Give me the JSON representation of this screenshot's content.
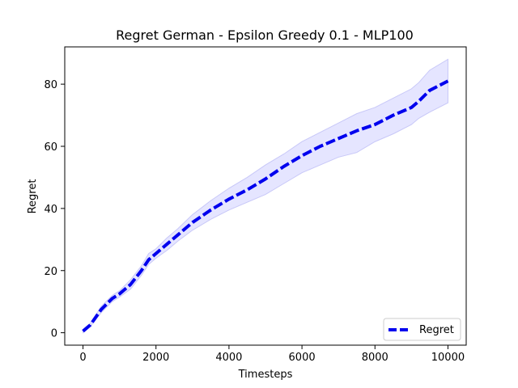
{
  "chart_data": {
    "type": "line",
    "title": "Regret German - Epsilon Greedy 0.1 - MLP100",
    "xlabel": "Timesteps",
    "ylabel": "Regret",
    "xlim": [
      -500,
      10500
    ],
    "ylim": [
      -4,
      92
    ],
    "xticks": [
      0,
      2000,
      4000,
      6000,
      8000,
      10000
    ],
    "xtick_labels": [
      "0",
      "2000",
      "4000",
      "6000",
      "8000",
      "10000"
    ],
    "yticks": [
      0,
      20,
      40,
      60,
      80
    ],
    "ytick_labels": [
      "0",
      "20",
      "40",
      "60",
      "80"
    ],
    "grid": false,
    "legend": {
      "placement": "lower-right",
      "entries": [
        "Regret"
      ]
    },
    "colors": {
      "line": "#0000ee",
      "band": "#e0e0ff",
      "band_edge": "#c8c8f8"
    },
    "series": [
      {
        "name": "Regret",
        "style": "dashed",
        "x": [
          0,
          200,
          500,
          800,
          1000,
          1300,
          1600,
          1800,
          2000,
          2300,
          2600,
          3000,
          3500,
          4000,
          4500,
          5000,
          5500,
          6000,
          6500,
          7000,
          7500,
          8000,
          8500,
          9000,
          9200,
          9500,
          10000
        ],
        "y": [
          0.5,
          2.5,
          7.5,
          11,
          12.5,
          15.5,
          20,
          23.5,
          25.5,
          28.5,
          31.5,
          35.5,
          39.5,
          43,
          46,
          49.5,
          53.5,
          57,
          60,
          62.5,
          65,
          67,
          70,
          72.5,
          74.5,
          78,
          81
        ],
        "lower": [
          0,
          2,
          6.5,
          10,
          11.5,
          14,
          18.5,
          22,
          24,
          26.5,
          29.5,
          33,
          36.5,
          39.5,
          42,
          44.5,
          48,
          51.5,
          54,
          56.5,
          58,
          61.5,
          64,
          67,
          69,
          71,
          74
        ],
        "upper": [
          1,
          3,
          8.5,
          12,
          13.5,
          17,
          21.5,
          25.5,
          27,
          30.5,
          33.5,
          38,
          42.5,
          46.5,
          50,
          54,
          57.5,
          61.5,
          64.5,
          67.5,
          70.5,
          72.5,
          75.5,
          78.5,
          80.5,
          84.5,
          88
        ]
      }
    ]
  }
}
